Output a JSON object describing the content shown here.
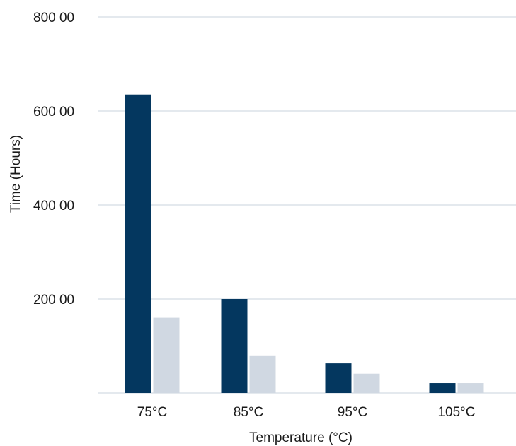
{
  "colors": {
    "series_primary": "#04375f",
    "series_secondary": "#d0d8e2",
    "grid": "#c9d3de",
    "text": "#1a1a1a"
  },
  "chart_data": {
    "type": "bar",
    "categories": [
      "75°C",
      "85°C",
      "95°C",
      "105°C"
    ],
    "series": [
      {
        "values": [
          63500,
          20000,
          6300,
          2100
        ]
      },
      {
        "values": [
          16000,
          8000,
          4100,
          2100
        ]
      }
    ],
    "xlabel": "Temperature (°C)",
    "ylabel": "Time (Hours)",
    "ylim": [
      0,
      80000
    ],
    "y_ticks": [
      {
        "value": 20000,
        "label": "200 00"
      },
      {
        "value": 40000,
        "label": "400 00"
      },
      {
        "value": 60000,
        "label": "600 00"
      },
      {
        "value": 80000,
        "label": "800 00"
      }
    ],
    "grid_step": 10000,
    "grid": true,
    "legend": "none"
  }
}
